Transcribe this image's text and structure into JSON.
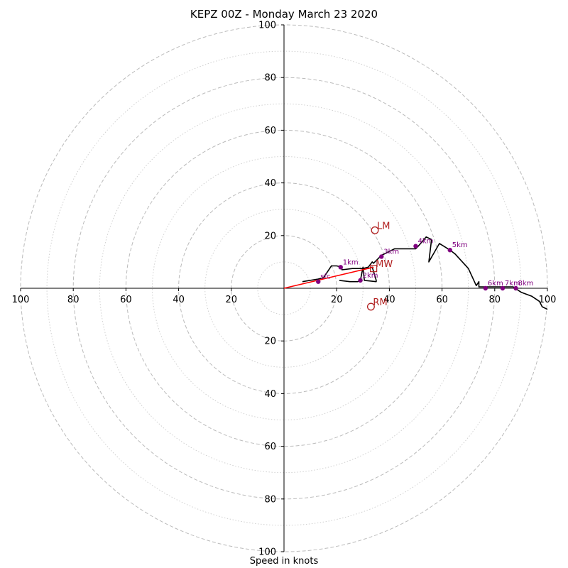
{
  "chart_data": {
    "type": "hodograph",
    "title": "KEPZ 00Z - Monday March 23 2020",
    "xlabel": "Speed in knots",
    "ylabel": "",
    "xlim": [
      -100,
      100
    ],
    "ylim": [
      -100,
      100
    ],
    "ring_major_step": 20,
    "ring_minor_offset": 10,
    "x_tick_labels": [
      "100",
      "80",
      "60",
      "40",
      "20",
      "20",
      "40",
      "60",
      "80",
      "100"
    ],
    "y_tick_labels": [
      "100",
      "80",
      "60",
      "40",
      "20",
      "20",
      "40",
      "60",
      "80",
      "100"
    ],
    "grid": true,
    "colors": {
      "trace": "#000000",
      "mean_shear": "#ff0000",
      "levels": "#800080",
      "motion": "#b22222",
      "grid": "#bbbbbb"
    },
    "trace": [
      [
        7,
        2.5
      ],
      [
        13,
        3.5
      ],
      [
        15,
        4
      ],
      [
        18,
        8.5
      ],
      [
        20,
        8.5
      ],
      [
        22,
        8
      ],
      [
        22,
        7
      ],
      [
        26,
        7.5
      ],
      [
        30,
        7.5
      ],
      [
        32,
        8
      ],
      [
        33.5,
        10
      ],
      [
        34,
        9.5
      ],
      [
        37,
        12.5
      ],
      [
        40,
        14
      ],
      [
        42,
        15
      ],
      [
        47,
        15
      ],
      [
        50,
        15
      ],
      [
        51,
        16
      ],
      [
        54,
        19.5
      ],
      [
        56,
        18.5
      ],
      [
        55,
        10
      ],
      [
        59,
        17
      ],
      [
        63,
        14.5
      ],
      [
        65,
        13
      ],
      [
        70,
        7.5
      ],
      [
        73,
        1
      ],
      [
        74,
        2.5
      ],
      [
        74,
        0.5
      ],
      [
        76,
        0.5
      ],
      [
        80,
        0.5
      ],
      [
        84,
        0.5
      ],
      [
        87,
        0.5
      ],
      [
        90,
        -1.5
      ],
      [
        94,
        -3
      ],
      [
        97,
        -5
      ],
      [
        98,
        -7
      ],
      [
        100,
        -8
      ]
    ],
    "lower_segment": [
      [
        21,
        3
      ],
      [
        25,
        2.5
      ],
      [
        28,
        2.5
      ],
      [
        29,
        3
      ],
      [
        30,
        8
      ],
      [
        30.5,
        3
      ],
      [
        35,
        2.5
      ],
      [
        35,
        3
      ],
      [
        33.5,
        8
      ],
      [
        32,
        7.5
      ]
    ],
    "levels": [
      {
        "label": "sfc",
        "u": 13,
        "v": 2.5
      },
      {
        "label": "1km",
        "u": 21.5,
        "v": 8
      },
      {
        "label": "2km",
        "u": 29,
        "v": 3
      },
      {
        "label": "3km",
        "u": 37,
        "v": 12
      },
      {
        "label": "4km",
        "u": 50,
        "v": 16
      },
      {
        "label": "5km",
        "u": 63,
        "v": 14.5
      },
      {
        "label": "6km",
        "u": 76.5,
        "v": 0
      },
      {
        "label": "7km",
        "u": 83,
        "v": 0
      },
      {
        "label": "8km",
        "u": 88,
        "v": 0
      }
    ],
    "mean_shear": {
      "from": [
        0,
        0
      ],
      "to": [
        34,
        8
      ]
    },
    "storm_motions": [
      {
        "label": "LM",
        "u": 34.5,
        "v": 22,
        "marker": "circle"
      },
      {
        "label": "MW",
        "u": 34,
        "v": 7.5,
        "marker": "square"
      },
      {
        "label": "RM",
        "u": 33,
        "v": -7,
        "marker": "circle"
      }
    ]
  }
}
